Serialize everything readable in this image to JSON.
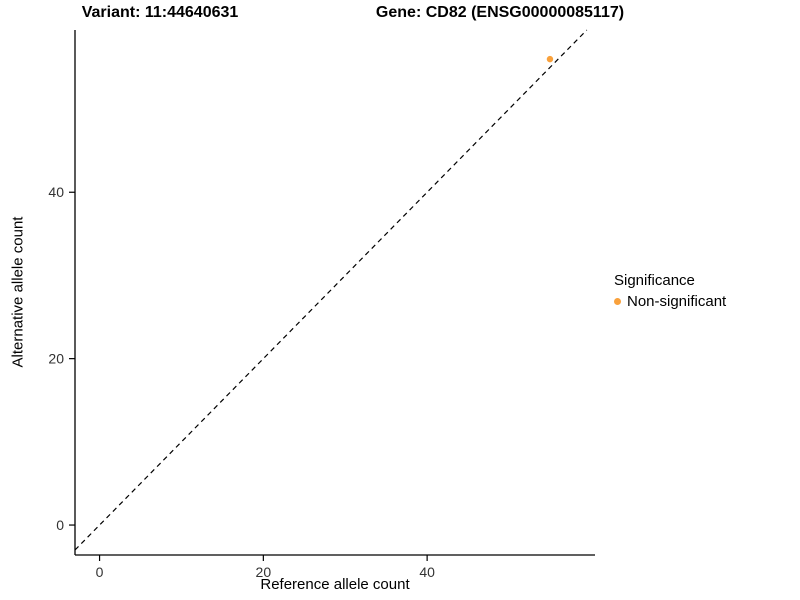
{
  "chart_data": {
    "type": "scatter",
    "title_left": "Variant: 11:44640631",
    "title_right": "Gene: CD82 (ENSG00000085117)",
    "xlabel": "Reference allele count",
    "ylabel": "Alternative allele count",
    "xlim": [
      -3,
      60.5
    ],
    "ylim": [
      -3.6,
      59.5
    ],
    "xticks": [
      0,
      20,
      40
    ],
    "yticks": [
      0,
      20,
      40
    ],
    "grid": false,
    "axis_color": "#000000",
    "tick_label_color": "#333333",
    "identity_line": {
      "slope": 1,
      "intercept": 0,
      "style": "dashed",
      "color": "#000000"
    },
    "series": [
      {
        "name": "Non-significant",
        "color": "#F9A13C",
        "points": [
          {
            "x": 55,
            "y": 56
          }
        ]
      }
    ],
    "legend": {
      "title": "Significance",
      "position": "right",
      "entries": [
        {
          "label": "Non-significant",
          "color": "#F9A13C"
        }
      ]
    }
  }
}
